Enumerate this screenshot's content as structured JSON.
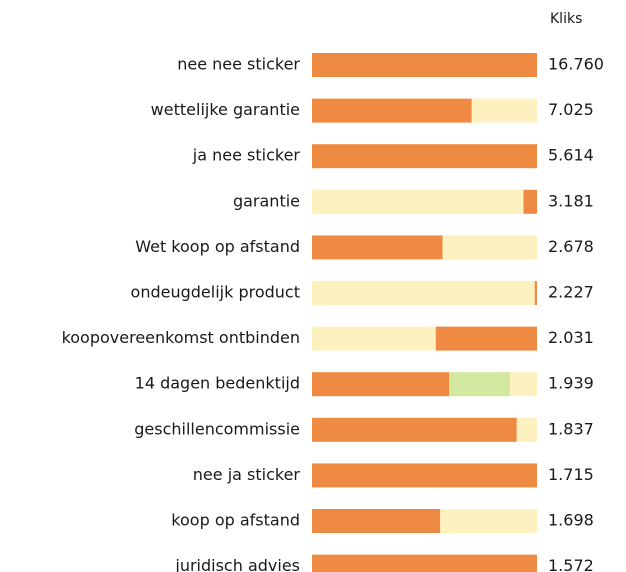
{
  "chart_data": {
    "type": "bar",
    "column_label": "Kliks",
    "categories": [
      "nee nee sticker",
      "wettelijke garantie",
      "ja nee sticker",
      "garantie",
      "Wet koop op afstand",
      "ondeugdelijk product",
      "koopovereenkomst ontbinden",
      "14 dagen bedenktijd",
      "geschillencommissie",
      "nee ja sticker",
      "koop op afstand",
      "juridisch advies"
    ],
    "values": [
      16760,
      7025,
      5614,
      3181,
      2678,
      2227,
      2031,
      1939,
      1837,
      1715,
      1698,
      1572
    ],
    "value_labels": [
      "16.760",
      "7.025",
      "5.614",
      "3.181",
      "2.678",
      "2.227",
      "2.031",
      "1.939",
      "1.837",
      "1.715",
      "1.698",
      "1.572"
    ],
    "segments": [
      [
        {
          "color": "#ef8a42",
          "value": 100
        }
      ],
      [
        {
          "color": "#ef8a42",
          "value": 71
        },
        {
          "color": "#fdf1c0",
          "value": 29
        }
      ],
      [
        {
          "color": "#ef8a42",
          "value": 100
        }
      ],
      [
        {
          "color": "#fdf1c0",
          "value": 94
        },
        {
          "color": "#ef8a42",
          "value": 6
        }
      ],
      [
        {
          "color": "#ef8a42",
          "value": 58
        },
        {
          "color": "#fdf1c0",
          "value": 42
        }
      ],
      [
        {
          "color": "#fdf1c0",
          "value": 99
        },
        {
          "color": "#ef8a42",
          "value": 1
        }
      ],
      [
        {
          "color": "#fdf1c0",
          "value": 55
        },
        {
          "color": "#ef8a42",
          "value": 45
        }
      ],
      [
        {
          "color": "#ef8a42",
          "value": 61
        },
        {
          "color": "#d3e8a0",
          "value": 27
        },
        {
          "color": "#fdf1c0",
          "value": 12
        }
      ],
      [
        {
          "color": "#ef8a42",
          "value": 91
        },
        {
          "color": "#fdf1c0",
          "value": 9
        }
      ],
      [
        {
          "color": "#ef8a42",
          "value": 100
        }
      ],
      [
        {
          "color": "#ef8a42",
          "value": 57
        },
        {
          "color": "#fdf1c0",
          "value": 43
        }
      ],
      [
        {
          "color": "#ef8a42",
          "value": 100
        }
      ]
    ]
  }
}
